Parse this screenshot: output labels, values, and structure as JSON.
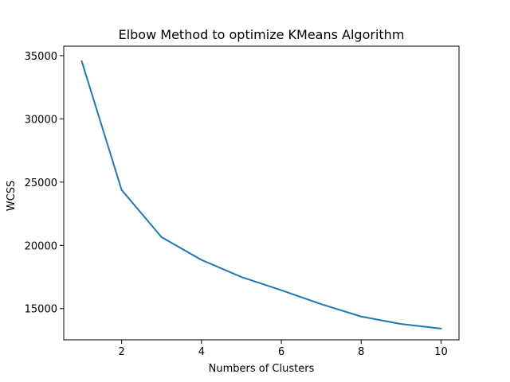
{
  "chart_data": {
    "type": "line",
    "title": "Elbow Method to optimize KMeans Algorithm",
    "xlabel": "Numbers of Clusters",
    "ylabel": "WCSS",
    "xlim": [
      0.55,
      10.45
    ],
    "ylim": [
      12530,
      35750
    ],
    "xticks": [
      2,
      4,
      6,
      8,
      10
    ],
    "yticks": [
      15000,
      20000,
      25000,
      30000,
      35000
    ],
    "grid": false,
    "series": [
      {
        "color": "#1f77b4",
        "x": [
          1,
          2,
          3,
          4,
          5,
          6,
          7,
          8,
          9,
          10
        ],
        "y": [
          34560,
          24380,
          20650,
          18850,
          17500,
          16450,
          15350,
          14370,
          13780,
          13420
        ]
      }
    ]
  }
}
